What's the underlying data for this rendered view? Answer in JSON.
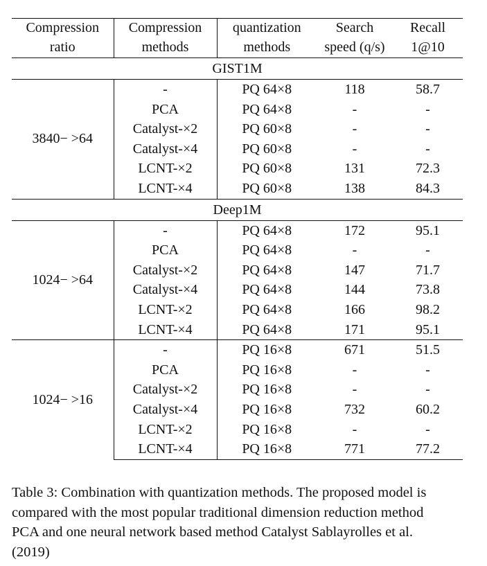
{
  "table": {
    "headers_line1": [
      "Compression",
      "Compression",
      "quantization",
      "Search",
      "Recall"
    ],
    "headers_line2": [
      "ratio",
      "methods",
      "methods",
      "speed (q/s)",
      "1@10"
    ],
    "sections": [
      {
        "dataset": "GIST1M",
        "groups": [
          {
            "ratio": "3840− >64",
            "rows": [
              [
                "-",
                "PQ 64×8",
                "118",
                "58.7"
              ],
              [
                "PCA",
                "PQ 64×8",
                "-",
                "-"
              ],
              [
                "Catalyst-×2",
                "PQ 60×8",
                "-",
                "-"
              ],
              [
                "Catalyst-×4",
                "PQ 60×8",
                "-",
                "-"
              ],
              [
                "LCNT-×2",
                "PQ 60×8",
                "131",
                "72.3"
              ],
              [
                "LCNT-×4",
                "PQ 60×8",
                "138",
                "84.3"
              ]
            ]
          }
        ]
      },
      {
        "dataset": "Deep1M",
        "groups": [
          {
            "ratio": "1024− >64",
            "rows": [
              [
                "-",
                "PQ 64×8",
                "172",
                "95.1"
              ],
              [
                "PCA",
                "PQ 64×8",
                "-",
                "-"
              ],
              [
                "Catalyst-×2",
                "PQ 64×8",
                "147",
                "71.7"
              ],
              [
                "Catalyst-×4",
                "PQ 64×8",
                "144",
                "73.8"
              ],
              [
                "LCNT-×2",
                "PQ 64×8",
                "166",
                "98.2"
              ],
              [
                "LCNT-×4",
                "PQ 64×8",
                "171",
                "95.1"
              ]
            ]
          },
          {
            "ratio": "1024− >16",
            "rows": [
              [
                "-",
                "PQ 16×8",
                "671",
                "51.5"
              ],
              [
                "PCA",
                "PQ 16×8",
                "-",
                "-"
              ],
              [
                "Catalyst-×2",
                "PQ 16×8",
                "-",
                "-"
              ],
              [
                "Catalyst-×4",
                "PQ 16×8",
                "732",
                "60.2"
              ],
              [
                "LCNT-×2",
                "PQ 16×8",
                "-",
                "-"
              ],
              [
                "LCNT-×4",
                "PQ 16×8",
                "771",
                "77.2"
              ]
            ]
          }
        ]
      }
    ]
  },
  "caption": "Table 3: Combination with quantization methods. The proposed model is compared with the most popular traditional dimension reduction method PCA and one neural network based method Catalyst Sablayrolles et al. (2019)"
}
